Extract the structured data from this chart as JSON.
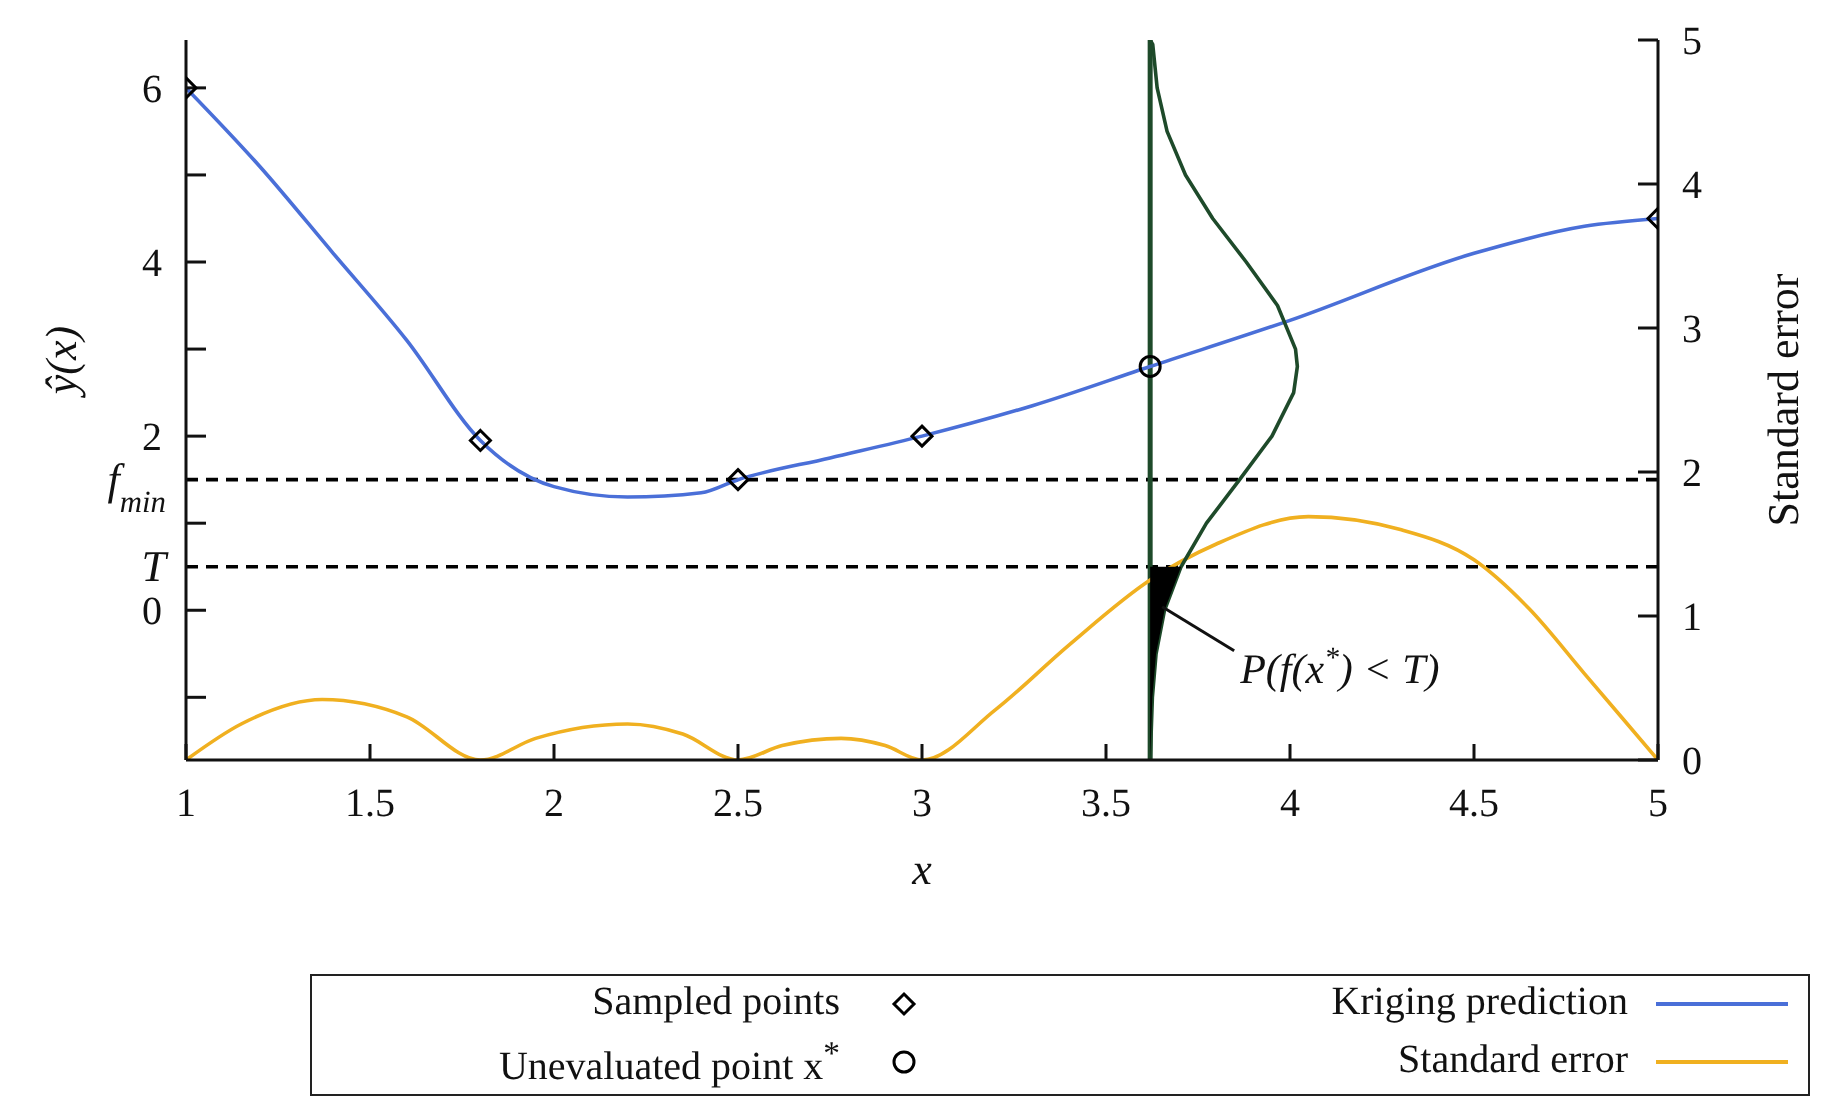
{
  "chart_data": {
    "type": "line",
    "xlabel": "x",
    "ylabel": "ŷ(x)",
    "y2label": "Standard error",
    "xlim": [
      1,
      5
    ],
    "xticks": [
      1,
      1.5,
      2,
      2.5,
      3,
      3.5,
      4,
      4.5,
      5
    ],
    "ylim": [
      -1.72,
      6.55
    ],
    "yticks": [
      {
        "value": -1,
        "label": null
      },
      0,
      {
        "value": 1,
        "label": null
      },
      2,
      {
        "value": 3,
        "label": null
      },
      4,
      {
        "value": 5,
        "label": null
      },
      6
    ],
    "y2lim": [
      0,
      5
    ],
    "y2ticks": [
      0,
      1,
      2,
      3,
      4,
      5
    ],
    "grid": false,
    "legend": "bottom",
    "series": [
      {
        "name": "Sampled points",
        "type": "scatter",
        "marker": "diamond",
        "color": "#000000",
        "x": [
          1,
          1.8,
          2.5,
          3,
          5
        ],
        "values": [
          6,
          1.95,
          1.5,
          2.0,
          4.5
        ]
      },
      {
        "name": "Unevaluated point x$^{*}$",
        "type": "scatter",
        "marker": "circle",
        "color": "#000000",
        "x": [
          3.62
        ],
        "values": [
          2.8
        ]
      },
      {
        "name": "Kriging prediction",
        "type": "line",
        "marker": "none",
        "color": "#4a6fd8",
        "x": [
          1,
          1.2,
          1.4,
          1.6,
          1.8,
          2.0,
          2.2,
          2.4,
          2.5,
          2.75,
          3,
          3.3,
          3.62,
          4,
          4.5,
          4.8,
          5
        ],
        "values": [
          6,
          5.1,
          4.1,
          3.1,
          1.95,
          1.42,
          1.3,
          1.35,
          1.5,
          1.75,
          2.0,
          2.35,
          2.8,
          3.33,
          4.1,
          4.41,
          4.5
        ]
      },
      {
        "name": "Standard error",
        "type": "line",
        "marker": "none",
        "axis": "y2",
        "color": "#f0b020",
        "x": [
          1,
          1.15,
          1.37,
          1.6,
          1.8,
          1.95,
          2.2,
          2.35,
          2.5,
          2.62,
          2.78,
          2.9,
          3,
          3.2,
          3.4,
          3.62,
          3.8,
          4.05,
          4.3,
          4.5,
          4.65,
          4.8,
          5
        ],
        "values": [
          0,
          0.25,
          0.42,
          0.3,
          0,
          0.15,
          0.25,
          0.18,
          0,
          0.1,
          0.15,
          0.1,
          0,
          0.35,
          0.8,
          1.25,
          1.5,
          1.69,
          1.6,
          1.39,
          1.05,
          0.6,
          0
        ]
      },
      {
        "color": "#1e4a2a",
        "marker": "none",
        "x": [
          3.62,
          3.627,
          3.639,
          3.666,
          3.716,
          3.79,
          3.881,
          3.966,
          4.015,
          4.02,
          4.01,
          3.951,
          3.863,
          3.773,
          3.704,
          3.659,
          3.636,
          3.626,
          3.622,
          3.62
        ],
        "values": [
          6.55,
          6.5,
          6,
          5.5,
          5,
          4.5,
          4,
          3.5,
          3,
          2.8,
          2.5,
          2,
          1.5,
          1,
          0.5,
          0,
          -0.5,
          -1,
          -1.5,
          -1.72
        ]
      },
      {
        "type": "area",
        "color": "#000000",
        "x": [
          3.62,
          3.704,
          3.659,
          3.636,
          3.626,
          3.622,
          3.62
        ],
        "values": [
          0.5,
          0.5,
          0,
          -0.5,
          -1,
          -1.5,
          -1.72
        ]
      }
    ],
    "ref_lines": [
      {
        "axis": "y",
        "value": 1.5,
        "label": "f$_{min}$",
        "color": "#000000",
        "line_style": "dashed"
      },
      {
        "axis": "y",
        "value": 0.5,
        "label": "T",
        "color": "#000000",
        "line_style": "dashed"
      },
      {
        "axis": "x",
        "value": 3.62,
        "color": "#1e4a2a",
        "line_style": "solid"
      }
    ],
    "annotations": [
      "P(f(x$^{*}$) < T)"
    ]
  }
}
